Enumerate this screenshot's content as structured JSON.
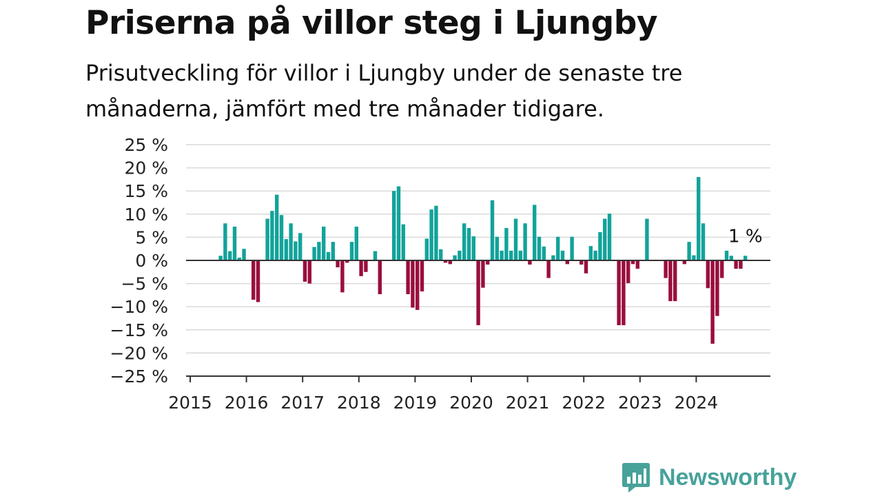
{
  "header": {
    "title": "Priserna på villor steg i Ljungby",
    "subtitle": "Prisutveckling för villor i Ljungby under de senaste tre månaderna, jämfört med tre månader tidigare."
  },
  "brand": {
    "name": "Newsworthy",
    "icon": "newsworthy-logo-icon"
  },
  "colors": {
    "positive": "#12a39a",
    "negative": "#9a0e3e",
    "grid": "#d9d9d9",
    "axis": "#333333"
  },
  "chart_data": {
    "type": "bar",
    "title": "Priserna på villor steg i Ljungby",
    "subtitle": "Prisutveckling för villor i Ljungby under de senaste tre månaderna, jämfört med tre månader tidigare.",
    "unit": "%",
    "x_start": "2015-01",
    "x_end": "2025-06",
    "ylim": [
      -25,
      25
    ],
    "y_ticks": [
      25,
      20,
      15,
      10,
      5,
      0,
      -5,
      -10,
      -15,
      -20,
      -25
    ],
    "y_tick_labels": [
      "25 %",
      "20 %",
      "15 %",
      "10 %",
      "5 %",
      "0 %",
      "−5 %",
      "−10 %",
      "−15 %",
      "−20 %",
      "−25 %"
    ],
    "x_tick_labels": [
      "2015",
      "2016",
      "2017",
      "2018",
      "2019",
      "2020",
      "2021",
      "2022",
      "2023",
      "2024"
    ],
    "x_tick_dates": [
      "2015-01",
      "2016-01",
      "2017-01",
      "2018-01",
      "2019-01",
      "2020-01",
      "2021-01",
      "2022-01",
      "2023-01",
      "2024-01"
    ],
    "grid": true,
    "legend": "none",
    "end_label": "1 %",
    "series": [
      {
        "dates": [
          "2015-07",
          "2015-08",
          "2015-09",
          "2015-10",
          "2015-11",
          "2015-12",
          "2016-02",
          "2016-03",
          "2016-05",
          "2016-06",
          "2016-07",
          "2016-08",
          "2016-09",
          "2016-10",
          "2016-11",
          "2016-12",
          "2017-01",
          "2017-02",
          "2017-03",
          "2017-04",
          "2017-05",
          "2017-06",
          "2017-07",
          "2017-08",
          "2017-09",
          "2017-10",
          "2017-11",
          "2017-12",
          "2018-01",
          "2018-02",
          "2018-03",
          "2018-04",
          "2018-05",
          "2018-08",
          "2018-09",
          "2018-10",
          "2018-11",
          "2018-12",
          "2019-01",
          "2019-02",
          "2019-03",
          "2019-04",
          "2019-05",
          "2019-06",
          "2019-07",
          "2019-08",
          "2019-09",
          "2019-10",
          "2019-11",
          "2019-12",
          "2020-01",
          "2020-02",
          "2020-03",
          "2020-04",
          "2020-05",
          "2020-06",
          "2020-07",
          "2020-08",
          "2020-09",
          "2020-10",
          "2020-11",
          "2020-12",
          "2021-01",
          "2021-02",
          "2021-03",
          "2021-04",
          "2021-05",
          "2021-06",
          "2021-07",
          "2021-08",
          "2021-09",
          "2021-10",
          "2021-11",
          "2021-12",
          "2022-01",
          "2022-02",
          "2022-03",
          "2022-04",
          "2022-05",
          "2022-06",
          "2022-07",
          "2022-08",
          "2022-09",
          "2022-10",
          "2022-11",
          "2022-12",
          "2023-02",
          "2023-06",
          "2023-07",
          "2023-08",
          "2023-09",
          "2023-10",
          "2023-11",
          "2023-12",
          "2024-01",
          "2024-02",
          "2024-03",
          "2024-04",
          "2024-05",
          "2024-06",
          "2024-07",
          "2024-08",
          "2024-09",
          "2024-10",
          "2024-11"
        ],
        "values": [
          1,
          8,
          2,
          7.3,
          0.6,
          2.5,
          -8.5,
          -9,
          9,
          10.7,
          14.2,
          9.8,
          4.6,
          8,
          4.1,
          5.9,
          -4.6,
          -5,
          2.9,
          4,
          7.3,
          1.8,
          4,
          -1.5,
          -6.9,
          -0.5,
          4,
          7.3,
          -3.4,
          -2.5,
          0,
          2,
          -7.3,
          15,
          16,
          7.8,
          -7.3,
          -10.2,
          -10.7,
          -6.7,
          4.7,
          11,
          11.8,
          2.4,
          -0.5,
          -0.8,
          1.1,
          2.1,
          8,
          7,
          5.2,
          -14,
          -5.9,
          -0.9,
          13,
          5.1,
          2.1,
          7,
          2.1,
          9,
          2.1,
          8,
          -0.9,
          12,
          5.1,
          3,
          -3.8,
          1.1,
          5.1,
          2.1,
          -0.8,
          5.1,
          0,
          -0.9,
          -2.8,
          3.1,
          2.1,
          6.1,
          9,
          10.1,
          0,
          -14,
          -14,
          -4.9,
          -0.8,
          -1.8,
          9,
          -3.8,
          -8.8,
          -8.8,
          0,
          -0.8,
          4,
          1.1,
          18,
          8,
          -6,
          -18,
          -12,
          -3.8,
          2.1,
          1,
          -1.8,
          -1.8,
          1
        ]
      }
    ]
  }
}
